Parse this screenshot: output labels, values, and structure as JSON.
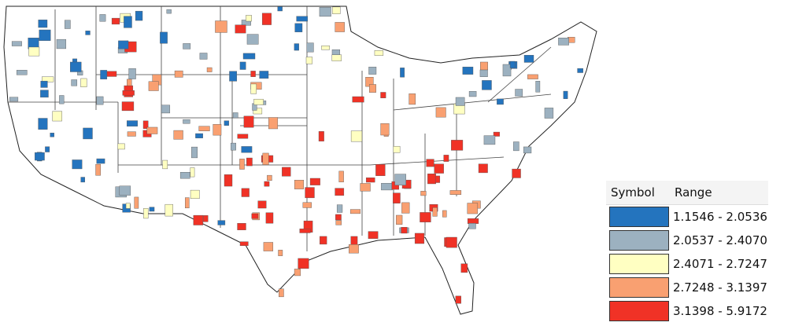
{
  "legend": {
    "header": [
      "Symbol",
      "Range"
    ],
    "rows": [
      {
        "range": "1.1546 - 2.0536",
        "color": "#2474be"
      },
      {
        "range": "2.0537 - 2.4070",
        "color": "#9cb1c0"
      },
      {
        "range": "2.4071 - 2.7247",
        "color": "#ffffc2"
      },
      {
        "range": "2.7248 - 3.1397",
        "color": "#f9a071"
      },
      {
        "range": "3.1398 - 5.9172",
        "color": "#f03226"
      }
    ]
  }
}
